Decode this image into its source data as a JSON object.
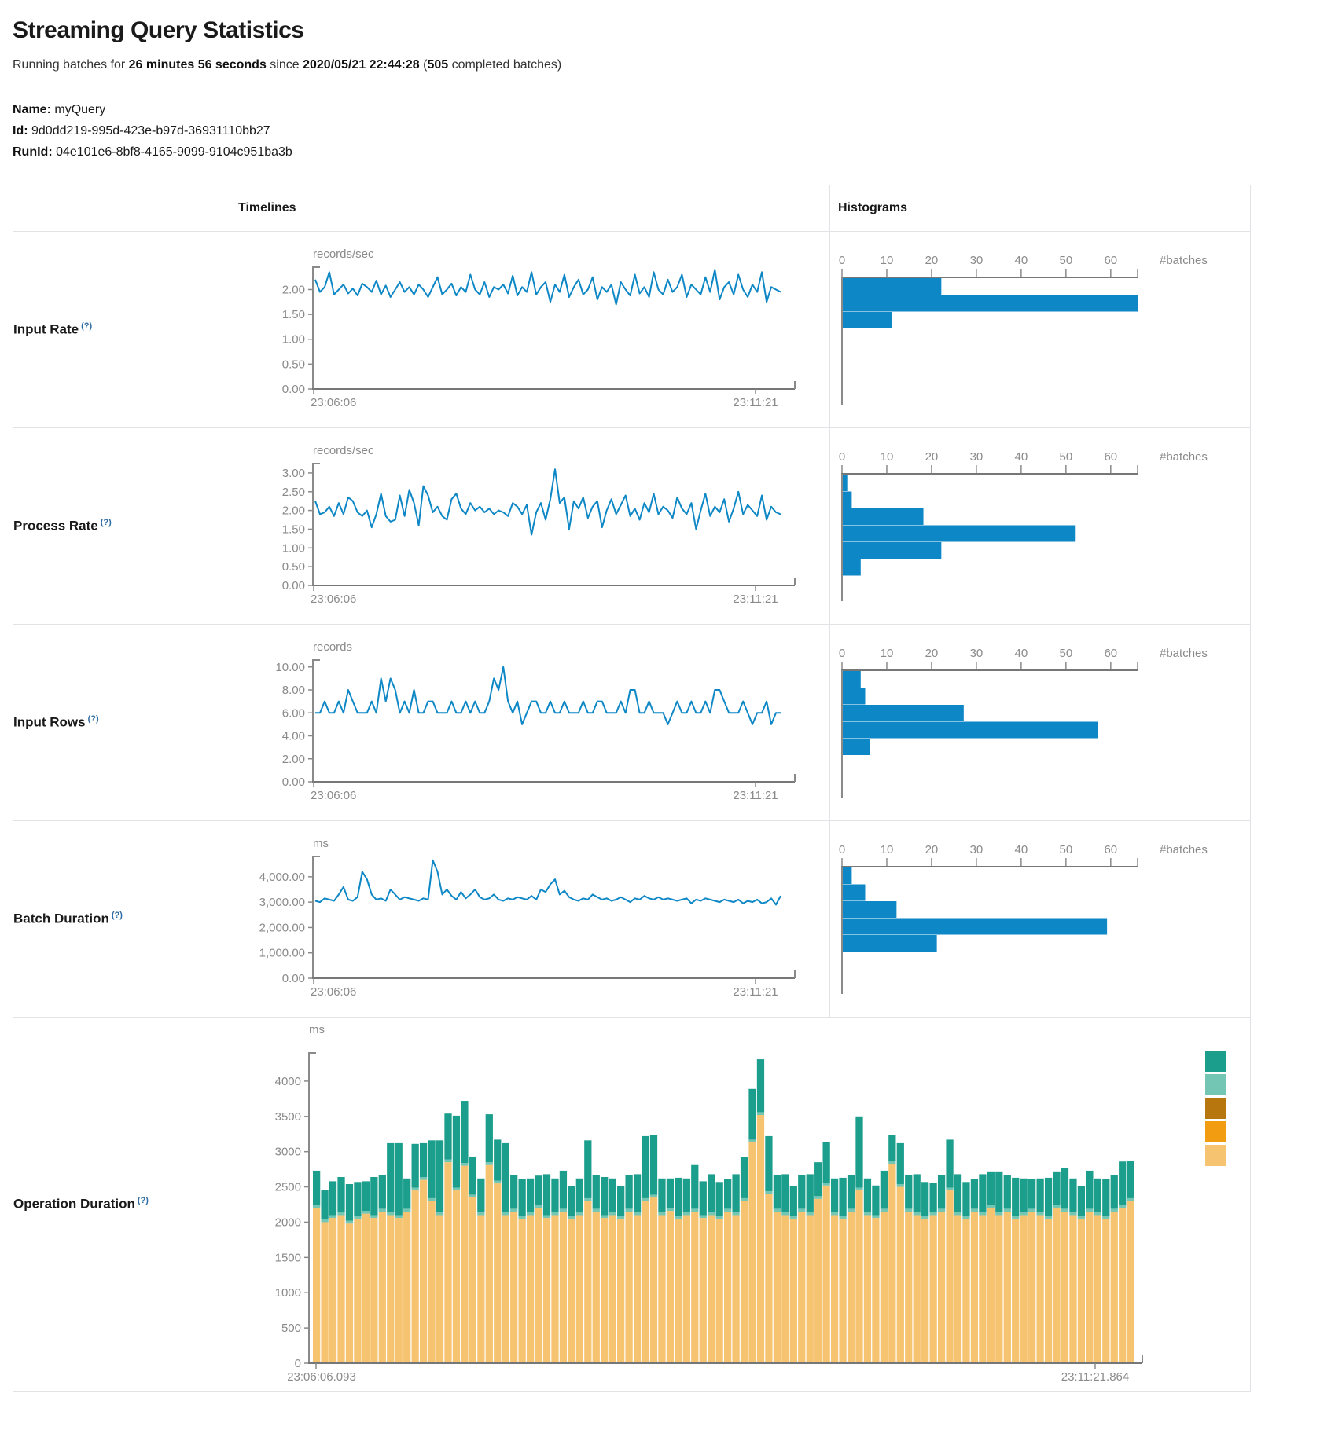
{
  "page": {
    "title": "Streaming Query Statistics",
    "running": {
      "prefix": "Running batches for ",
      "duration": "26 minutes 56 seconds",
      "mid": " since ",
      "since": "2020/05/21 22:44:28",
      "open": " (",
      "batches": "505",
      "suffix": " completed batches)"
    },
    "meta": [
      {
        "label": "Name:",
        "value": "myQuery"
      },
      {
        "label": "Id:",
        "value": "9d0dd219-995d-423e-b97d-36931110bb27"
      },
      {
        "label": "RunId:",
        "value": "04e101e6-8bf8-4165-9099-9104c951ba3b"
      }
    ]
  },
  "table": {
    "col_timelines": "Timelines",
    "col_histograms": "Histograms",
    "help_glyph": "(?)",
    "rows": [
      {
        "key": "input-rate",
        "label": "Input Rate"
      },
      {
        "key": "process-rate",
        "label": "Process Rate"
      },
      {
        "key": "input-rows",
        "label": "Input Rows"
      },
      {
        "key": "batch-duration",
        "label": "Batch Duration"
      },
      {
        "key": "operation-duration",
        "label": "Operation Duration"
      }
    ]
  },
  "colors": {
    "blue": "#0d87c5",
    "axis": "#8a8a8a",
    "baseline": "#777777",
    "legend": [
      "#1b9e8b",
      "#74c6b4",
      "#b8770e",
      "#f29c11",
      "#f6c371"
    ],
    "stack": [
      "#f6c371",
      "#74c6b4",
      "#1b9e8b"
    ]
  },
  "chart_data": [
    {
      "type": "line",
      "title": "Input Rate timeline",
      "ylabel": "records/sec",
      "ymax": 2.45,
      "yticks": [
        [
          0,
          "0.00"
        ],
        [
          0.5,
          "0.50"
        ],
        [
          1,
          "1.00"
        ],
        [
          1.5,
          "1.50"
        ],
        [
          2,
          "2.00"
        ]
      ],
      "x_start": "23:06:06",
      "x_end": "23:11:21",
      "values": [
        2.2,
        1.95,
        2.05,
        2.35,
        1.9,
        2.0,
        2.1,
        1.92,
        2.02,
        1.88,
        2.12,
        2.05,
        1.95,
        2.18,
        1.9,
        2.08,
        1.85,
        2.0,
        2.15,
        1.95,
        2.05,
        1.9,
        2.1,
        2.0,
        1.85,
        2.05,
        2.25,
        1.9,
        2.0,
        2.12,
        1.88,
        2.05,
        1.95,
        2.3,
        2.0,
        1.9,
        2.15,
        1.85,
        2.05,
        2.0,
        2.1,
        1.92,
        2.28,
        1.88,
        2.05,
        1.95,
        2.35,
        1.9,
        2.05,
        2.15,
        1.75,
        2.1,
        1.95,
        2.3,
        1.85,
        2.05,
        2.2,
        1.9,
        2.0,
        2.25,
        1.8,
        2.05,
        1.95,
        2.1,
        1.7,
        2.15,
        2.0,
        1.88,
        2.3,
        1.92,
        2.05,
        1.85,
        2.35,
        2.0,
        1.9,
        2.2,
        1.95,
        2.05,
        2.3,
        1.85,
        2.1,
        2.0,
        1.9,
        2.25,
        1.95,
        2.4,
        1.8,
        2.05,
        2.15,
        1.9,
        2.3,
        2.0,
        1.85,
        2.1,
        1.95,
        2.35,
        1.75,
        2.05,
        2.0,
        1.95
      ],
      "histogram": {
        "bins": [
          22,
          66,
          11
        ],
        "ticks": [
          0,
          10,
          20,
          30,
          40,
          50,
          60
        ],
        "axis_max": 66,
        "label": "#batches"
      }
    },
    {
      "type": "line",
      "title": "Process Rate timeline",
      "ylabel": "records/sec",
      "ymax": 3.25,
      "yticks": [
        [
          0,
          "0.00"
        ],
        [
          0.5,
          "0.50"
        ],
        [
          1,
          "1.00"
        ],
        [
          1.5,
          "1.50"
        ],
        [
          2,
          "2.00"
        ],
        [
          2.5,
          "2.50"
        ],
        [
          3,
          "3.00"
        ]
      ],
      "x_start": "23:06:06",
      "x_end": "23:11:21",
      "values": [
        2.25,
        1.9,
        1.95,
        2.1,
        1.85,
        2.2,
        1.9,
        2.35,
        2.25,
        1.95,
        1.85,
        2.0,
        1.55,
        1.9,
        2.45,
        1.85,
        1.7,
        1.75,
        2.4,
        1.85,
        2.55,
        2.2,
        1.6,
        2.65,
        2.4,
        1.95,
        2.1,
        1.85,
        1.75,
        2.3,
        2.45,
        2.05,
        1.9,
        2.2,
        2.0,
        2.1,
        1.95,
        2.05,
        1.9,
        2.0,
        1.95,
        1.85,
        2.2,
        2.1,
        1.9,
        2.15,
        1.35,
        1.95,
        2.2,
        1.75,
        2.3,
        3.1,
        2.2,
        2.35,
        1.5,
        2.25,
        2.05,
        2.35,
        1.8,
        2.1,
        2.25,
        1.55,
        2.0,
        2.3,
        1.9,
        2.15,
        2.4,
        1.85,
        2.05,
        1.75,
        2.2,
        1.95,
        2.45,
        1.9,
        2.1,
        2.0,
        1.8,
        2.35,
        2.05,
        1.9,
        2.2,
        1.5,
        2.0,
        2.45,
        1.85,
        2.1,
        1.95,
        2.3,
        1.7,
        2.05,
        2.5,
        1.9,
        2.15,
        2.0,
        1.85,
        2.4,
        1.75,
        2.1,
        1.95,
        1.9
      ],
      "histogram": {
        "bins": [
          1,
          2,
          18,
          52,
          22,
          4
        ],
        "ticks": [
          0,
          10,
          20,
          30,
          40,
          50,
          60
        ],
        "axis_max": 66,
        "label": "#batches"
      }
    },
    {
      "type": "line",
      "title": "Input Rows timeline",
      "ylabel": "records",
      "ymax": 10.6,
      "yticks": [
        [
          0,
          "0.00"
        ],
        [
          2,
          "2.00"
        ],
        [
          4,
          "4.00"
        ],
        [
          6,
          "6.00"
        ],
        [
          8,
          "8.00"
        ],
        [
          10,
          "10.00"
        ]
      ],
      "x_start": "23:06:06",
      "x_end": "23:11:21",
      "values": [
        6,
        6,
        7,
        6,
        6,
        7,
        6,
        8,
        7,
        6,
        6,
        6,
        7,
        6,
        9,
        7,
        9,
        8,
        6,
        7,
        6,
        8,
        6,
        6,
        7,
        7,
        6,
        6,
        6,
        7,
        6,
        6,
        7,
        6,
        7,
        6,
        6,
        7,
        9,
        8,
        10,
        7,
        6,
        7,
        5,
        6,
        7,
        7,
        6,
        6,
        7,
        6,
        6,
        7,
        6,
        6,
        6,
        7,
        6,
        6,
        7,
        7,
        6,
        6,
        6,
        7,
        6,
        8,
        8,
        6,
        6,
        7,
        6,
        6,
        6,
        5,
        6,
        7,
        6,
        6,
        7,
        6,
        6,
        7,
        6,
        8,
        8,
        7,
        6,
        6,
        6,
        7,
        6,
        5,
        6,
        6,
        7,
        5,
        6,
        6
      ],
      "histogram": {
        "bins": [
          4,
          5,
          27,
          57,
          6
        ],
        "ticks": [
          0,
          10,
          20,
          30,
          40,
          50,
          60
        ],
        "axis_max": 66,
        "label": "#batches"
      }
    },
    {
      "type": "line",
      "title": "Batch Duration timeline",
      "ylabel": "ms",
      "ymax": 4800,
      "yticks": [
        [
          0,
          "0.00"
        ],
        [
          1000,
          "1,000.00"
        ],
        [
          2000,
          "2,000.00"
        ],
        [
          3000,
          "3,000.00"
        ],
        [
          4000,
          "4,000.00"
        ]
      ],
      "x_start": "23:06:06",
      "x_end": "23:11:21",
      "values": [
        3050,
        3000,
        3150,
        3100,
        3050,
        3300,
        3600,
        3100,
        3050,
        3200,
        4200,
        3900,
        3300,
        3100,
        3150,
        3050,
        3500,
        3300,
        3100,
        3200,
        3150,
        3100,
        3050,
        3150,
        3100,
        4650,
        4200,
        3300,
        3500,
        3250,
        3100,
        3400,
        3150,
        3300,
        3500,
        3200,
        3100,
        3150,
        3300,
        3100,
        3050,
        3150,
        3100,
        3200,
        3150,
        3100,
        3250,
        3100,
        3500,
        3400,
        3700,
        3900,
        3300,
        3450,
        3200,
        3100,
        3050,
        3150,
        3100,
        3300,
        3200,
        3100,
        3150,
        3050,
        3100,
        3200,
        3100,
        3000,
        3150,
        3100,
        3250,
        3150,
        3100,
        3200,
        3100,
        3150,
        3100,
        3050,
        3100,
        3150,
        2950,
        3100,
        3050,
        3150,
        3100,
        3050,
        3000,
        3100,
        3050,
        3000,
        3100,
        2950,
        3050,
        3000,
        3100,
        2950,
        3000,
        3150,
        2900,
        3250
      ],
      "histogram": {
        "bins": [
          2,
          5,
          12,
          59,
          21
        ],
        "ticks": [
          0,
          10,
          20,
          30,
          40,
          50,
          60
        ],
        "axis_max": 66,
        "label": "#batches"
      }
    },
    {
      "type": "stacked_bar",
      "title": "Operation Duration",
      "ylabel": "ms",
      "ymax": 4400,
      "yticks": [
        [
          0,
          "0"
        ],
        [
          500,
          "500"
        ],
        [
          1000,
          "1000"
        ],
        [
          1500,
          "1500"
        ],
        [
          2000,
          "2000"
        ],
        [
          2500,
          "2500"
        ],
        [
          3000,
          "3000"
        ],
        [
          3500,
          "3500"
        ],
        [
          4000,
          "4000"
        ]
      ],
      "x_start": "23:06:06.093",
      "x_end": "23:11:21.864",
      "sliver": 40,
      "base": [
        2200,
        2000,
        2060,
        2100,
        1980,
        2050,
        2120,
        2060,
        2150,
        2100,
        2060,
        2150,
        2450,
        2600,
        2300,
        2100,
        2850,
        2450,
        2800,
        2350,
        2100,
        2810,
        2550,
        2100,
        2150,
        2050,
        2100,
        2200,
        2060,
        2100,
        2150,
        2050,
        2100,
        2300,
        2150,
        2060,
        2100,
        2050,
        2150,
        2100,
        2300,
        2350,
        2100,
        2160,
        2050,
        2100,
        2150,
        2060,
        2100,
        2050,
        2150,
        2100,
        2300,
        3130,
        3520,
        2400,
        2150,
        2100,
        2050,
        2150,
        2100,
        2330,
        2520,
        2100,
        2050,
        2150,
        2450,
        2100,
        2060,
        2150,
        2820,
        2500,
        2150,
        2100,
        2050,
        2100,
        2150,
        2450,
        2100,
        2050,
        2150,
        2100,
        2200,
        2100,
        2150,
        2050,
        2100,
        2150,
        2100,
        2050,
        2200,
        2150,
        2100,
        2050,
        2150,
        2100,
        2050,
        2150,
        2200,
        2300
      ],
      "top": [
        490,
        420,
        480,
        500,
        520,
        480,
        420,
        540,
        480,
        980,
        1020,
        430,
        620,
        480,
        820,
        1020,
        650,
        1020,
        880,
        540,
        480,
        680,
        580,
        980,
        480,
        520,
        480,
        420,
        580,
        480,
        540,
        420,
        480,
        820,
        480,
        540,
        480,
        420,
        480,
        540,
        880,
        850,
        480,
        420,
        540,
        480,
        620,
        480,
        540,
        480,
        420,
        540,
        580,
        720,
        750,
        780,
        480,
        540,
        420,
        480,
        540,
        480,
        580,
        480,
        540,
        480,
        1010,
        480,
        420,
        540,
        380,
        580,
        480,
        540,
        480,
        420,
        480,
        680,
        540,
        480,
        420,
        540,
        480,
        580,
        480,
        540,
        480,
        420,
        480,
        540,
        480,
        580,
        480,
        420,
        540,
        480,
        520,
        480,
        620,
        530
      ]
    }
  ]
}
